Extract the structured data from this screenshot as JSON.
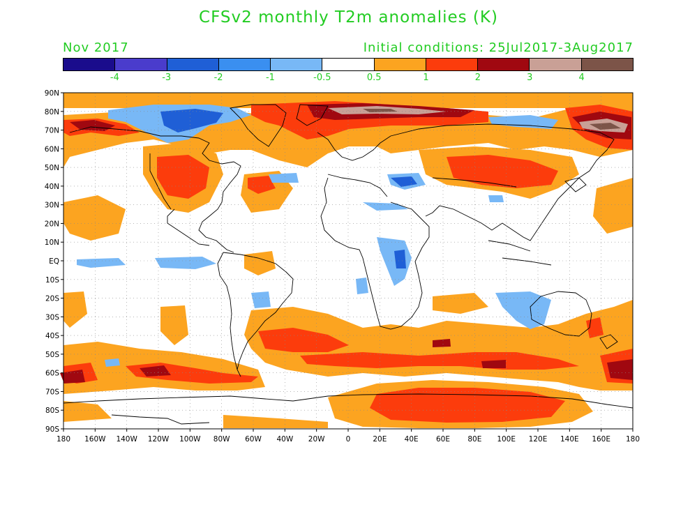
{
  "title": "CFSv2 monthly T2m anomalies (K)",
  "valid_label": "Nov 2017",
  "initial_conditions": "Initial conditions: 25Jul2017-3Aug2017",
  "colorbar": {
    "colors": [
      "#1a0c8c",
      "#4a3ccc",
      "#1f5fd6",
      "#3a8ff0",
      "#78b8f6",
      "#ffffff",
      "#fca420",
      "#fc3c0c",
      "#a00810",
      "#c9a096",
      "#7c5448"
    ],
    "labels": [
      "-4",
      "-3",
      "-2",
      "-1",
      "-0.5",
      "0.5",
      "1",
      "2",
      "3",
      "4"
    ]
  },
  "map": {
    "lat_labels": [
      "90N",
      "80N",
      "70N",
      "60N",
      "50N",
      "40N",
      "30N",
      "20N",
      "10N",
      "EQ",
      "10S",
      "20S",
      "30S",
      "40S",
      "50S",
      "60S",
      "70S",
      "80S",
      "90S"
    ],
    "lon_labels": [
      "180",
      "160W",
      "140W",
      "120W",
      "100W",
      "80W",
      "60W",
      "40W",
      "20W",
      "0",
      "20E",
      "40E",
      "60E",
      "80E",
      "100E",
      "120E",
      "140E",
      "160E",
      "180"
    ],
    "colors": {
      "strong_cold": "#1f5fd6",
      "cold": "#78b8f6",
      "mild_warm": "#fca420",
      "warm": "#fc3c0c",
      "very_warm": "#a00810",
      "extreme": "#c9a096",
      "extreme_dark": "#7c5448",
      "coast": "#000000",
      "grid": "#888888"
    }
  }
}
